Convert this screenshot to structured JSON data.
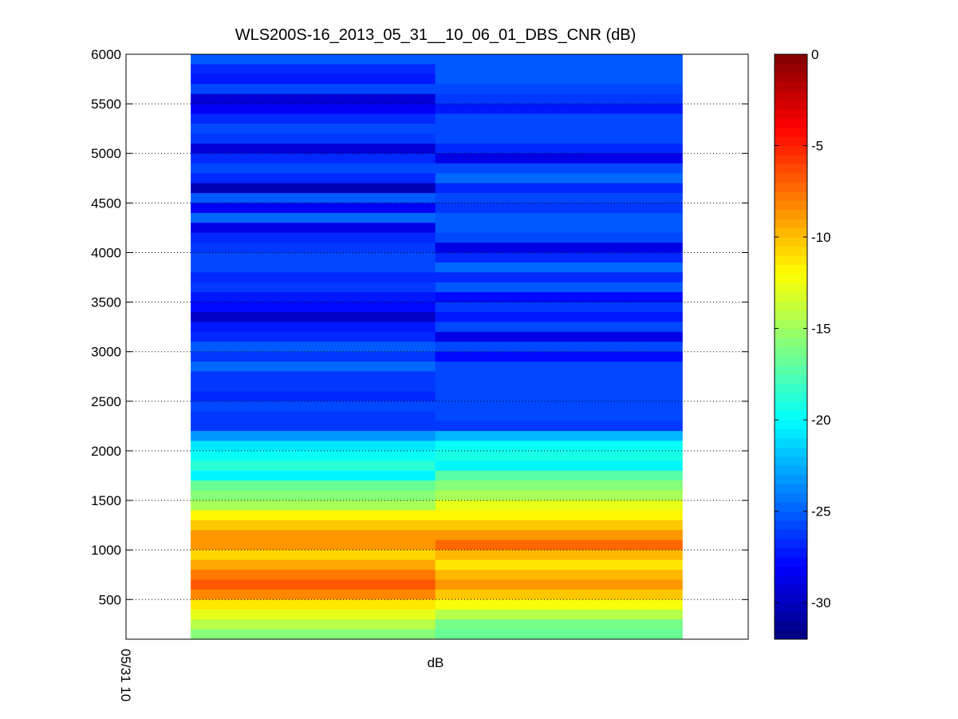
{
  "chart_data": {
    "type": "heatmap",
    "title": "WLS200S-16_2013_05_31__10_06_01_DBS_CNR (dB)",
    "x_label": "dB",
    "xlim": [
      0,
      1
    ],
    "xticks": [
      {
        "value": 0,
        "label": "05/31 10"
      }
    ],
    "x_edges": [
      0.104,
      0.497,
      0.894
    ],
    "ylim": [
      100,
      6000
    ],
    "yticks": [
      500,
      1000,
      1500,
      2000,
      2500,
      3000,
      3500,
      4000,
      4500,
      5000,
      5500,
      6000
    ],
    "y": [
      5950,
      5850,
      5750,
      5650,
      5550,
      5450,
      5350,
      5250,
      5150,
      5050,
      4950,
      4850,
      4750,
      4650,
      4550,
      4450,
      4350,
      4250,
      4150,
      4050,
      3950,
      3850,
      3750,
      3650,
      3550,
      3450,
      3350,
      3250,
      3150,
      3050,
      2950,
      2850,
      2750,
      2650,
      2550,
      2450,
      2350,
      2250,
      2150,
      2050,
      1950,
      1850,
      1750,
      1650,
      1550,
      1450,
      1350,
      1250,
      1150,
      1050,
      950,
      850,
      750,
      650,
      550,
      450,
      350,
      250,
      150
    ],
    "values": [
      [
        -25.5,
        -27,
        -27.5,
        -26,
        -29.5,
        -28.5,
        -27,
        -26,
        -26.5,
        -29.5,
        -27,
        -26,
        -27,
        -30.5,
        -25.5,
        -28.5,
        -25,
        -29,
        -27,
        -26.5,
        -26,
        -26,
        -27,
        -26.5,
        -27.5,
        -28,
        -30,
        -27.5,
        -27,
        -25.5,
        -26.5,
        -25,
        -26.5,
        -26.5,
        -27,
        -26,
        -26.5,
        -26.5,
        -23.5,
        -21,
        -20,
        -19,
        -20.5,
        -17,
        -16,
        -15,
        -12,
        -10.5,
        -9,
        -9,
        -11,
        -9.5,
        -8,
        -7,
        -8.5,
        -11.5,
        -13,
        -14.5,
        -16
      ],
      [
        -25.5,
        -25.5,
        -25.5,
        -26,
        -26.5,
        -27.5,
        -26,
        -26,
        -26,
        -27,
        -29,
        -26,
        -25,
        -27,
        -26,
        -26.5,
        -25.5,
        -25.5,
        -26,
        -29,
        -27,
        -25,
        -27,
        -25.5,
        -28,
        -26.5,
        -27.5,
        -26,
        -29,
        -26,
        -28,
        -26,
        -26,
        -26,
        -26,
        -26,
        -26,
        -26.5,
        -22.5,
        -20,
        -19.5,
        -20.5,
        -17.5,
        -16,
        -15,
        -13,
        -12,
        -10.5,
        -9,
        -7.5,
        -10,
        -11.5,
        -10,
        -9,
        -10.5,
        -12.5,
        -14.5,
        -16.5,
        -17
      ]
    ],
    "colormap": "jet",
    "clim": [
      -32,
      0
    ],
    "cticks": [
      0,
      -5,
      -10,
      -15,
      -20,
      -25,
      -30
    ],
    "grid": true
  }
}
